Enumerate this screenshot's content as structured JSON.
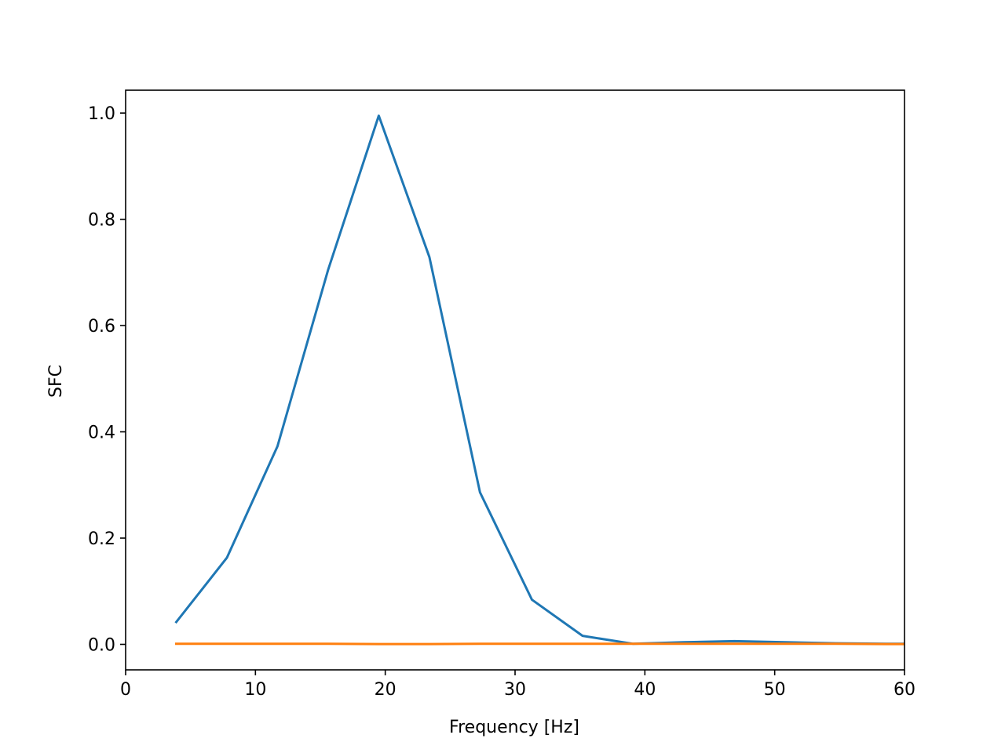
{
  "chart_data": {
    "type": "line",
    "title": "",
    "xlabel": "Frequency [Hz]",
    "ylabel": "SFC",
    "xlim": [
      0,
      60
    ],
    "ylim": [
      -0.048,
      1.043
    ],
    "xticks": [
      0,
      10,
      20,
      30,
      40,
      50,
      60
    ],
    "xtick_labels": [
      "0",
      "10",
      "20",
      "30",
      "40",
      "50",
      "60"
    ],
    "yticks": [
      0.0,
      0.2,
      0.4,
      0.6,
      0.8,
      1.0
    ],
    "ytick_labels": [
      "0.0",
      "0.2",
      "0.4",
      "0.6",
      "0.8",
      "1.0"
    ],
    "grid": false,
    "series": [
      {
        "color": "#1f77b4",
        "x": [
          3.9,
          7.8,
          11.7,
          15.6,
          19.5,
          23.4,
          27.3,
          31.3,
          35.2,
          39.1,
          43.0,
          46.9,
          50.8,
          54.7,
          58.6,
          60.0
        ],
        "y": [
          0.042,
          0.163,
          0.373,
          0.705,
          0.995,
          0.729,
          0.286,
          0.084,
          0.016,
          0.001,
          0.004,
          0.006,
          0.004,
          0.002,
          0.001,
          0.001
        ]
      },
      {
        "color": "#ff7f0e",
        "x": [
          3.9,
          7.8,
          11.7,
          15.6,
          19.5,
          23.4,
          27.3,
          31.3,
          35.2,
          39.1,
          43.0,
          46.9,
          50.8,
          54.7,
          58.6,
          60.0
        ],
        "y": [
          0.001,
          0.001,
          0.001,
          0.001,
          0.0005,
          0.0005,
          0.001,
          0.001,
          0.001,
          0.001,
          0.001,
          0.001,
          0.001,
          0.001,
          0.0005,
          0.0005
        ]
      }
    ]
  }
}
